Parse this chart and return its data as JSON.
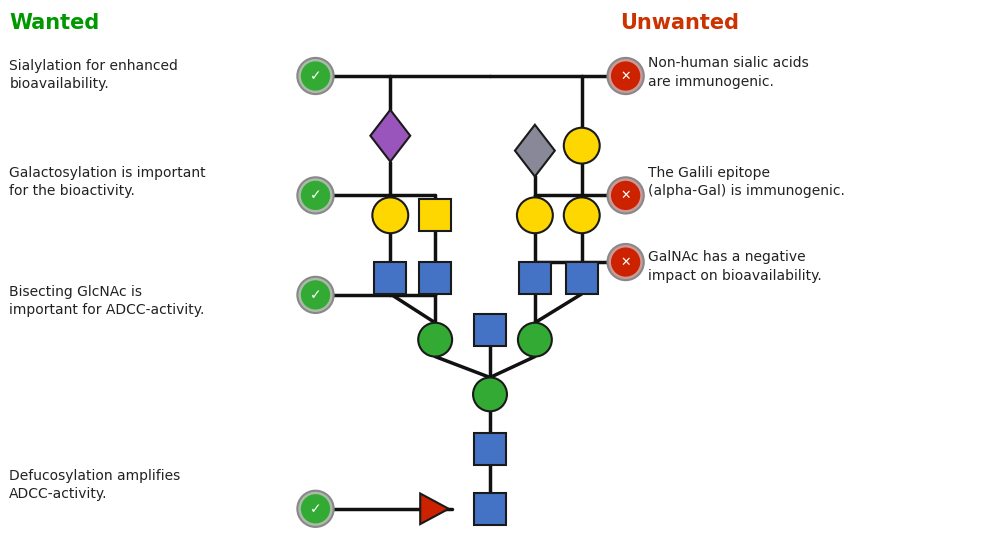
{
  "title_wanted": "Wanted",
  "title_unwanted": "Unwanted",
  "title_wanted_color": "#009900",
  "title_unwanted_color": "#cc3300",
  "bg_color": "#ffffff",
  "wanted_labels": [
    "Sialylation for enhanced\nbioavailability.",
    "Galactosylation is important\nfor the bioactivity.",
    "Bisecting GlcNAc is\nimportant for ADCC-activity.",
    "Defucosylation amplifies\nADCC-activity."
  ],
  "unwanted_labels": [
    "Non-human sialic acids\nare immunogenic.",
    "The Galili epitope\n(alpha-Gal) is immunogenic.",
    "GalNAc has a negative\nimpact on bioavailability."
  ],
  "node_colors": {
    "blue_square": "#4472C4",
    "green_circle": "#33aa33",
    "yellow_circle": "#FFD700",
    "yellow_square": "#FFD700",
    "purple_diamond": "#9955BB",
    "gray_diamond": "#888899",
    "red_triangle": "#CC2200"
  }
}
